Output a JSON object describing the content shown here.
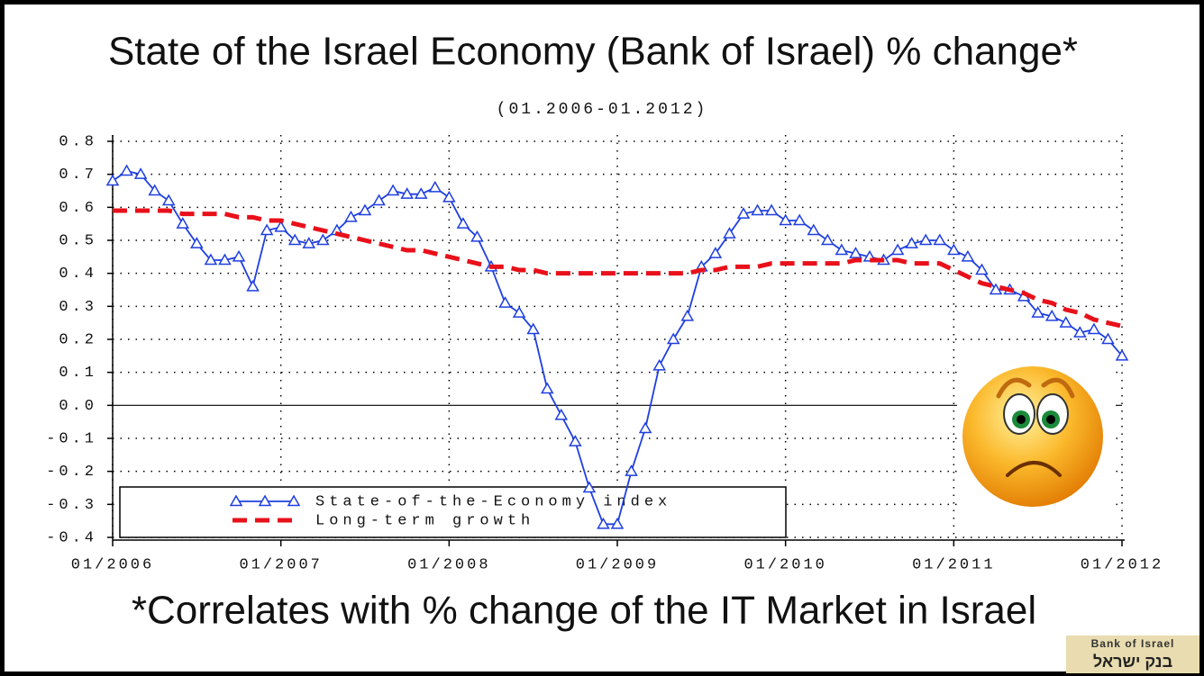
{
  "chart_data": {
    "type": "line",
    "title": "State of the Israel Economy (Bank of Israel) % change*",
    "subtitle": "(01.2006-01.2012)",
    "footnote": "*Correlates with % change of the IT Market in Israel",
    "logo_text": [
      "Bank of Israel",
      "בנק ישראל"
    ],
    "x": [
      "2006-01",
      "2006-02",
      "2006-03",
      "2006-04",
      "2006-05",
      "2006-06",
      "2006-07",
      "2006-08",
      "2006-09",
      "2006-10",
      "2006-11",
      "2006-12",
      "2007-01",
      "2007-02",
      "2007-03",
      "2007-04",
      "2007-05",
      "2007-06",
      "2007-07",
      "2007-08",
      "2007-09",
      "2007-10",
      "2007-11",
      "2007-12",
      "2008-01",
      "2008-02",
      "2008-03",
      "2008-04",
      "2008-05",
      "2008-06",
      "2008-07",
      "2008-08",
      "2008-09",
      "2008-10",
      "2008-11",
      "2008-12",
      "2009-01",
      "2009-02",
      "2009-03",
      "2009-04",
      "2009-05",
      "2009-06",
      "2009-07",
      "2009-08",
      "2009-09",
      "2009-10",
      "2009-11",
      "2009-12",
      "2010-01",
      "2010-02",
      "2010-03",
      "2010-04",
      "2010-05",
      "2010-06",
      "2010-07",
      "2010-08",
      "2010-09",
      "2010-10",
      "2010-11",
      "2010-12",
      "2011-01",
      "2011-02",
      "2011-03",
      "2011-04",
      "2011-05",
      "2011-06",
      "2011-07",
      "2011-08",
      "2011-09",
      "2011-10",
      "2011-11",
      "2011-12",
      "2012-01"
    ],
    "series": [
      {
        "name": "State-of-the-Economy index",
        "color": "#1f3fe0",
        "marker": "triangle",
        "dash": false,
        "values": [
          0.68,
          0.71,
          0.7,
          0.65,
          0.62,
          0.55,
          0.49,
          0.44,
          0.44,
          0.45,
          0.36,
          0.53,
          0.54,
          0.5,
          0.49,
          0.5,
          0.53,
          0.57,
          0.59,
          0.62,
          0.65,
          0.64,
          0.64,
          0.66,
          0.63,
          0.55,
          0.51,
          0.42,
          0.31,
          0.28,
          0.23,
          0.05,
          -0.03,
          -0.11,
          -0.25,
          -0.36,
          -0.36,
          -0.2,
          -0.07,
          0.12,
          0.2,
          0.27,
          0.42,
          0.46,
          0.52,
          0.58,
          0.59,
          0.59,
          0.56,
          0.56,
          0.53,
          0.5,
          0.47,
          0.46,
          0.45,
          0.44,
          0.47,
          0.49,
          0.5,
          0.5,
          0.47,
          0.45,
          0.41,
          0.35,
          0.35,
          0.33,
          0.28,
          0.27,
          0.25,
          0.22,
          0.23,
          0.2,
          0.15
        ]
      },
      {
        "name": "Long-term growth",
        "color": "#e8101a",
        "marker": "none",
        "dash": true,
        "values": [
          0.59,
          0.59,
          0.59,
          0.59,
          0.59,
          0.58,
          0.58,
          0.58,
          0.58,
          0.57,
          0.57,
          0.56,
          0.56,
          0.55,
          0.54,
          0.53,
          0.52,
          0.51,
          0.5,
          0.49,
          0.48,
          0.47,
          0.47,
          0.46,
          0.45,
          0.44,
          0.43,
          0.42,
          0.42,
          0.41,
          0.41,
          0.4,
          0.4,
          0.4,
          0.4,
          0.4,
          0.4,
          0.4,
          0.4,
          0.4,
          0.4,
          0.4,
          0.41,
          0.41,
          0.42,
          0.42,
          0.42,
          0.43,
          0.43,
          0.43,
          0.43,
          0.43,
          0.43,
          0.44,
          0.44,
          0.44,
          0.44,
          0.43,
          0.43,
          0.43,
          0.41,
          0.39,
          0.37,
          0.36,
          0.35,
          0.34,
          0.32,
          0.31,
          0.29,
          0.28,
          0.26,
          0.25,
          0.24
        ]
      }
    ],
    "xlim": [
      "2006-01",
      "2012-01"
    ],
    "xticks": [
      {
        "value": "2006-01",
        "label": "01/2006"
      },
      {
        "value": "2007-01",
        "label": "01/2007"
      },
      {
        "value": "2008-01",
        "label": "01/2008"
      },
      {
        "value": "2009-01",
        "label": "01/2009"
      },
      {
        "value": "2010-01",
        "label": "01/2010"
      },
      {
        "value": "2011-01",
        "label": "01/2011"
      },
      {
        "value": "2012-01",
        "label": "01/2012"
      }
    ],
    "ylim": [
      -0.4,
      0.8
    ],
    "yticks": [
      0.8,
      0.7,
      0.6,
      0.5,
      0.4,
      0.3,
      0.2,
      0.1,
      {
        "value": 0,
        "label": "0.0"
      },
      -0.1,
      -0.2,
      -0.3,
      -0.4
    ],
    "grid": true,
    "legend": "lower-left"
  }
}
